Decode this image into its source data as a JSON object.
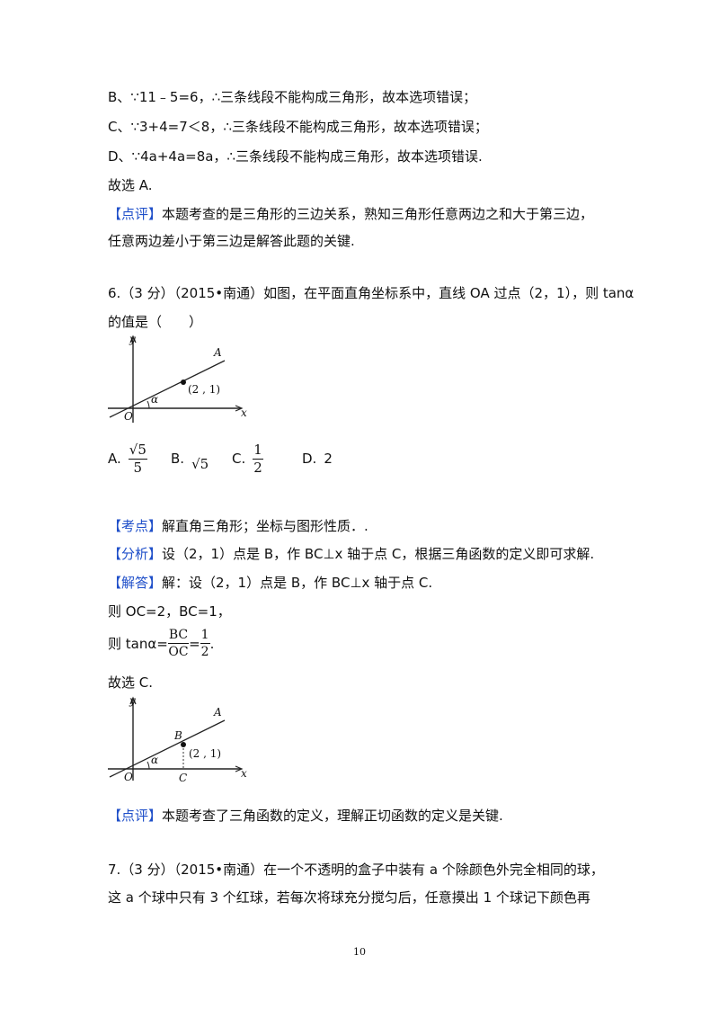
{
  "prev": {
    "line_b": "B、∵11﹣5=6，∴三条线段不能构成三角形，故本选项错误；",
    "line_c": "C、∵3+4=7＜8，∴三条线段不能构成三角形，故本选项错误；",
    "line_d": "D、∵4a+4a=8a，∴三条线段不能构成三角形，故本选项错误.",
    "choose": "故选 A.",
    "comment_tag": "【点评】",
    "comment_1": "本题考查的是三角形的三边关系，熟知三角形任意两边之和大于第三边，",
    "comment_2": "任意两边差小于第三边是解答此题的关键."
  },
  "q6": {
    "line_1": "6.（3 分）（2015•南通）如图，在平面直角坐标系中，直线 OA 过点（2，1），则 tanα",
    "line_2": "的值是（　　）",
    "figure": {
      "label_y": "y",
      "label_x": "x",
      "label_o": "O",
      "label_a": "A",
      "label_alpha": "α",
      "label_point": "(2 , 1)"
    },
    "options": {
      "a_label": "A.",
      "a_num": "√5",
      "a_den": "5",
      "b_label": "B.",
      "b_value": "√5",
      "c_label": "C.",
      "c_num": "1",
      "c_den": "2",
      "d_label": "D.",
      "d_value": "2"
    },
    "kaodian_tag": "【考点】",
    "kaodian": "解直角三角形；坐标与图形性质．.",
    "fenxi_tag": "【分析】",
    "fenxi": "设（2，1）点是 B，作 BC⊥x 轴于点 C，根据三角函数的定义即可求解.",
    "jieda_tag": "【解答】",
    "jieda": "解：设（2，1）点是 B，作 BC⊥x 轴于点 C.",
    "step_1": "则 OC=2，BC=1，",
    "step_2_prefix": "则 tanα=",
    "step_2_num": "BC",
    "step_2_den": "OC",
    "step_2_eq": "=",
    "step_2_num2": "1",
    "step_2_den2": "2",
    "step_2_end": ".",
    "choose": "故选 C.",
    "figure2": {
      "label_y": "y",
      "label_x": "x",
      "label_o": "O",
      "label_a": "A",
      "label_b": "B",
      "label_c": "C",
      "label_alpha": "α",
      "label_point": "(2 , 1)"
    },
    "comment_tag": "【点评】",
    "comment": "本题考查了三角函数的定义，理解正切函数的定义是关键."
  },
  "q7": {
    "line_1": "7.（3 分）（2015•南通）在一个不透明的盒子中装有 a 个除颜色外完全相同的球，",
    "line_2": "这 a 个球中只有 3 个红球，若每次将球充分搅匀后，任意摸出 1 个球记下颜色再"
  },
  "page_number": "10",
  "colors": {
    "tag": "#1f4fc9",
    "text": "#111111"
  }
}
